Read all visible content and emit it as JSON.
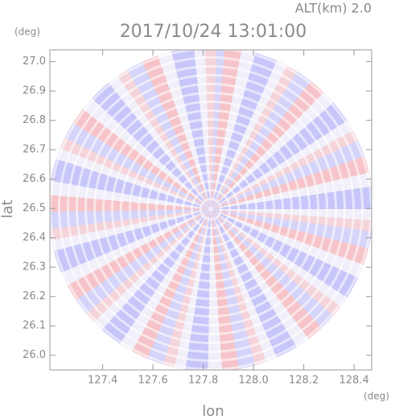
{
  "chart_data": {
    "type": "radar-ppi",
    "title": "2017/10/24 13:01:00",
    "subtitle": "ALT(km) 2.0",
    "x_label": "lon",
    "y_label": "lat",
    "x_unit": "(deg)",
    "y_unit": "(deg)",
    "xlim": [
      127.19,
      128.47
    ],
    "ylim": [
      25.95,
      27.04
    ],
    "xticks": [
      127.4,
      127.6,
      127.8,
      {
        "value": 128.0,
        "label": "128.0"
      },
      128.2,
      128.4
    ],
    "yticks": [
      {
        "value": 26.0,
        "label": "26.0"
      },
      26.1,
      26.2,
      26.3,
      26.4,
      26.5,
      26.6,
      26.7,
      26.8,
      26.9,
      {
        "value": 27.0,
        "label": "27.0"
      }
    ]
  }
}
